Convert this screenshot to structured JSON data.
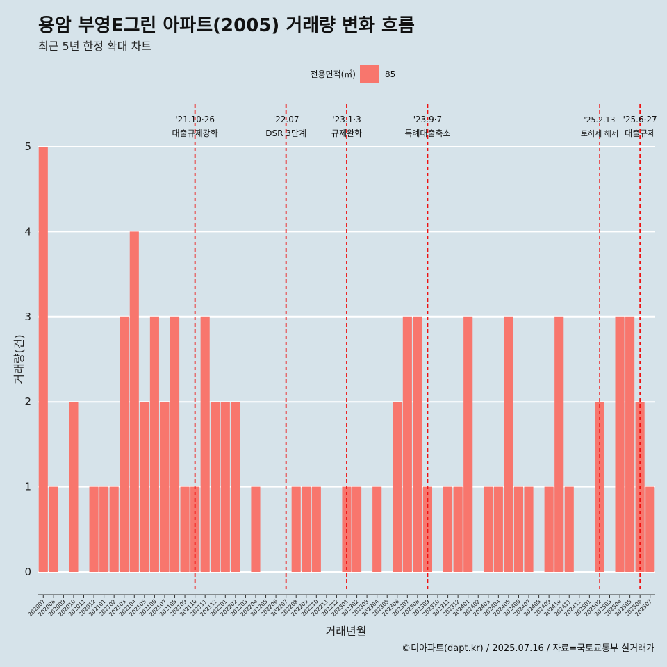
{
  "title": "용암 부영E그린 아파트(2005) 거래량 변화 흐름",
  "subtitle": "최근 5년 한정 확대 차트",
  "caption": "©디아파트(dapt.kr) / 2025.07.16 / 자료=국토교통부 실거래가",
  "colors": {
    "background": "#d6e3ea",
    "bar": "#f8766d",
    "event_line": "#ee1111",
    "grid": "#ffffff"
  },
  "chart_data": {
    "type": "bar",
    "xlabel": "거래년월",
    "ylabel": "거래량(건)",
    "ylim": [
      0,
      5
    ],
    "y_ticks": [
      0,
      1,
      2,
      3,
      4,
      5
    ],
    "grid": true,
    "legend": {
      "title": "전용면적(㎡)",
      "position": "top",
      "entries": [
        "85"
      ]
    },
    "categories": [
      "202007",
      "202008",
      "202009",
      "202010",
      "202011",
      "202012",
      "202101",
      "202102",
      "202103",
      "202104",
      "202105",
      "202106",
      "202107",
      "202108",
      "202109",
      "202110",
      "202111",
      "202112",
      "202201",
      "202202",
      "202203",
      "202204",
      "202205",
      "202206",
      "202207",
      "202208",
      "202209",
      "202210",
      "202211",
      "202212",
      "202301",
      "202302",
      "202303",
      "202304",
      "202305",
      "202306",
      "202307",
      "202308",
      "202309",
      "202310",
      "202311",
      "202312",
      "202401",
      "202402",
      "202403",
      "202404",
      "202405",
      "202406",
      "202407",
      "202408",
      "202409",
      "202410",
      "202411",
      "202412",
      "202501",
      "202502",
      "202503",
      "202504",
      "202505",
      "202506",
      "202507"
    ],
    "series": [
      {
        "name": "85",
        "values": [
          5,
          1,
          0,
          2,
          0,
          1,
          1,
          1,
          3,
          4,
          2,
          3,
          2,
          3,
          1,
          1,
          3,
          2,
          2,
          2,
          0,
          1,
          0,
          0,
          0,
          1,
          1,
          1,
          0,
          0,
          1,
          1,
          0,
          1,
          0,
          2,
          3,
          3,
          1,
          0,
          1,
          1,
          3,
          0,
          1,
          1,
          3,
          1,
          1,
          0,
          1,
          3,
          1,
          0,
          0,
          2,
          0,
          3,
          3,
          2,
          1
        ]
      }
    ],
    "events": [
      {
        "date_label": "'21.10·26",
        "text": "대출규제강화",
        "month": "202110"
      },
      {
        "date_label": "'22.07",
        "text": "DSR 3단계",
        "month": "202207"
      },
      {
        "date_label": "'23.1·3",
        "text": "규제완화",
        "month": "202301"
      },
      {
        "date_label": "'23.9·7",
        "text": "특례대출축소",
        "month": "202309"
      },
      {
        "date_label": "'25.2.13",
        "text": "토허제 해제",
        "month": "202502"
      },
      {
        "date_label": "'25.6·27",
        "text": "대출규제",
        "month": "202506"
      }
    ]
  }
}
